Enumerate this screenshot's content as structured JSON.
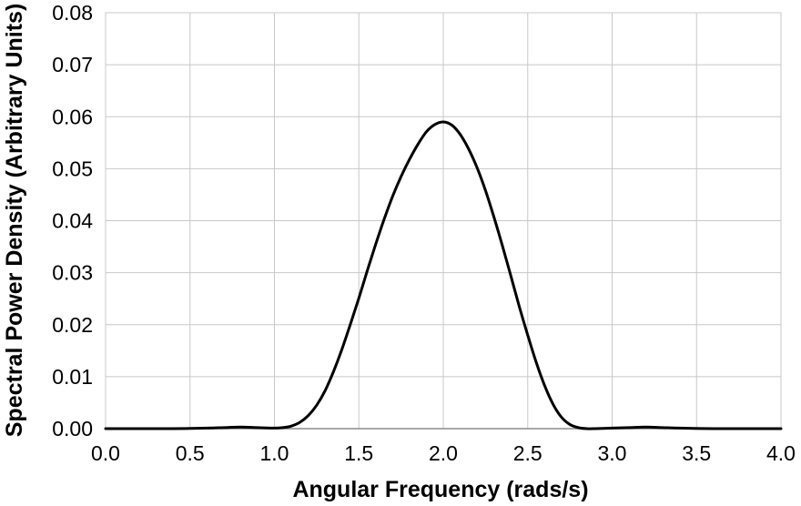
{
  "chart_data": {
    "type": "line",
    "title": "",
    "xlabel": "Angular Frequency (rads/s)",
    "ylabel": "Spectral Power Density (Arbitrary Units)",
    "xlim": [
      0.0,
      4.0
    ],
    "ylim": [
      0.0,
      0.08
    ],
    "grid": true,
    "legend": "none",
    "x_tick_labels": [
      "0.0",
      "0.5",
      "1.0",
      "1.5",
      "2.0",
      "2.5",
      "3.0",
      "3.5",
      "4.0"
    ],
    "y_tick_labels": [
      "0.00",
      "0.01",
      "0.02",
      "0.03",
      "0.04",
      "0.05",
      "0.06",
      "0.07",
      "0.08"
    ],
    "colors": {
      "line": "#000000",
      "grid": "#c8c8c8"
    },
    "series": [
      {
        "x": [
          0.0,
          0.2,
          0.4,
          0.6,
          0.7,
          0.8,
          0.9,
          1.0,
          1.05,
          1.1,
          1.15,
          1.2,
          1.25,
          1.3,
          1.35,
          1.4,
          1.45,
          1.5,
          1.55,
          1.6,
          1.65,
          1.7,
          1.75,
          1.8,
          1.85,
          1.9,
          1.95,
          2.0,
          2.05,
          2.1,
          2.15,
          2.2,
          2.25,
          2.3,
          2.35,
          2.4,
          2.45,
          2.5,
          2.55,
          2.6,
          2.65,
          2.7,
          2.75,
          2.8,
          2.85,
          2.9,
          3.0,
          3.1,
          3.2,
          3.3,
          3.4,
          3.6,
          3.8,
          4.0
        ],
        "y": [
          0.0,
          0.0,
          0.0,
          0.0001,
          0.0002,
          0.0003,
          0.0002,
          0.0001,
          0.0002,
          0.0005,
          0.0012,
          0.0025,
          0.0045,
          0.0073,
          0.011,
          0.0153,
          0.0201,
          0.0251,
          0.0304,
          0.0355,
          0.0403,
          0.0447,
          0.0485,
          0.0518,
          0.0547,
          0.0571,
          0.0585,
          0.059,
          0.0584,
          0.0566,
          0.0538,
          0.0502,
          0.0458,
          0.0407,
          0.0352,
          0.0294,
          0.0235,
          0.018,
          0.0128,
          0.0083,
          0.0047,
          0.0022,
          0.0008,
          0.0002,
          0.0,
          0.0,
          0.0001,
          0.0002,
          0.0003,
          0.0002,
          0.0001,
          0.0,
          0.0,
          0.0
        ]
      }
    ]
  }
}
